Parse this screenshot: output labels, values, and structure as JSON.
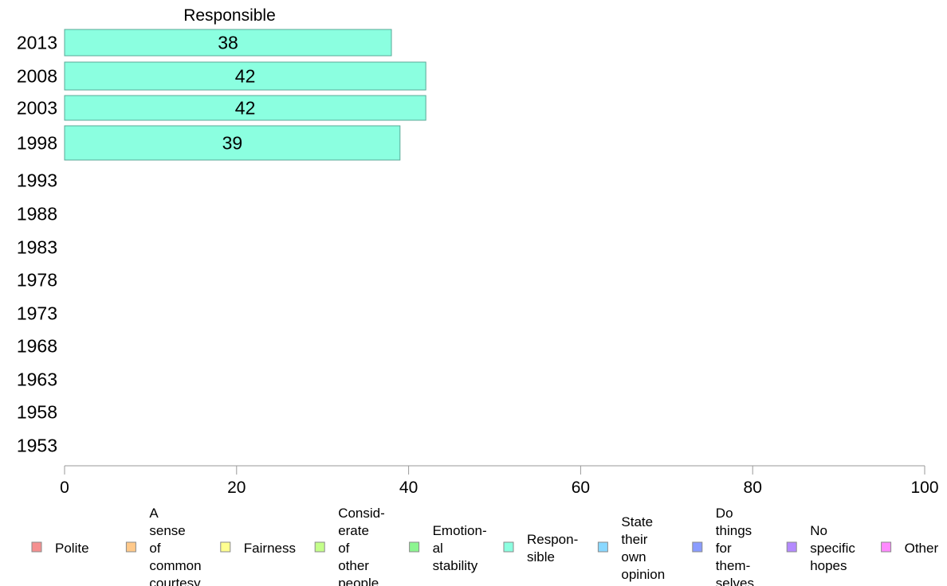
{
  "chart_data": {
    "type": "bar",
    "orientation": "horizontal",
    "title": "Responsible",
    "categories": [
      "2013",
      "2008",
      "2003",
      "1998",
      "1993",
      "1988",
      "1983",
      "1978",
      "1973",
      "1968",
      "1963",
      "1958",
      "1953"
    ],
    "series": [
      {
        "values": [
          38,
          42,
          42,
          39,
          null,
          null,
          null,
          null,
          null,
          null,
          null,
          null,
          null
        ],
        "color": "#8bffe0"
      }
    ],
    "xlim": [
      0,
      100
    ],
    "xticks": [
      "0",
      "20",
      "40",
      "60",
      "80",
      "100"
    ],
    "grid": false,
    "legend_position": "bottom",
    "legend": [
      {
        "label": "Polite",
        "color": "#f59090"
      },
      {
        "label": "A sense of common courtesy",
        "color": "#ffc98a"
      },
      {
        "label": "Fairness",
        "color": "#ffff90"
      },
      {
        "label": "Consid- erate of other people",
        "color": "#c4ff8a"
      },
      {
        "label": "Emotion- al stability",
        "color": "#8cf590"
      },
      {
        "label": "Respon- sible",
        "color": "#8bffe0"
      },
      {
        "label": "State their own opinion",
        "color": "#8ad8ff"
      },
      {
        "label": "Do things for them- selves",
        "color": "#8a9cff"
      },
      {
        "label": "No specific hopes",
        "color": "#b48aff"
      },
      {
        "label": "Other",
        "color": "#ff8aff"
      }
    ]
  }
}
